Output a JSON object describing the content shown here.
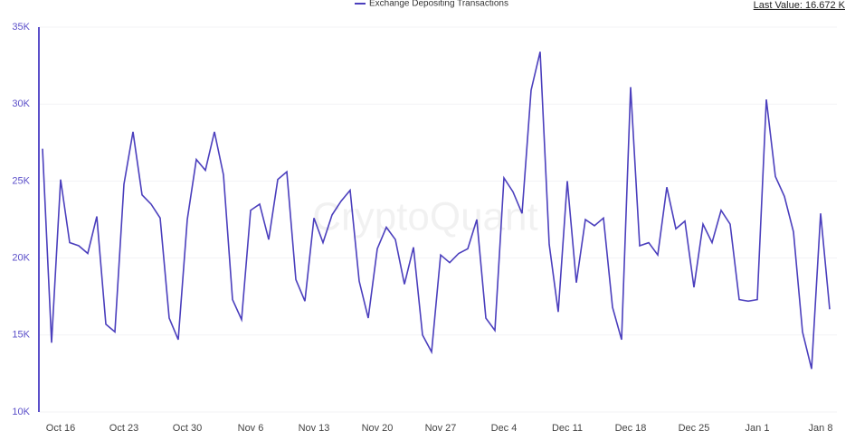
{
  "chart_data": {
    "type": "line",
    "legend_label": "Exchange Depositing Transactions",
    "last_value_text": "Last Value: 16.672 K",
    "watermark": "CryptoQuant",
    "categories": [
      null,
      null,
      "Oct 16",
      null,
      null,
      null,
      null,
      null,
      null,
      "Oct 23",
      null,
      null,
      null,
      null,
      null,
      null,
      "Oct 30",
      null,
      null,
      null,
      null,
      null,
      null,
      "Nov 6",
      null,
      null,
      null,
      null,
      null,
      null,
      "Nov 13",
      null,
      null,
      null,
      null,
      null,
      null,
      "Nov 20",
      null,
      null,
      null,
      null,
      null,
      null,
      "Nov 27",
      null,
      null,
      null,
      null,
      null,
      null,
      "Dec 4",
      null,
      null,
      null,
      null,
      null,
      null,
      "Dec 11",
      null,
      null,
      null,
      null,
      null,
      null,
      "Dec 18",
      null,
      null,
      null,
      null,
      null,
      null,
      "Dec 25",
      null,
      null,
      null,
      null,
      null,
      null,
      "Jan 1",
      null,
      null,
      null,
      null,
      null,
      null,
      "Jan 8",
      null
    ],
    "series": [
      {
        "name": "Exchange Depositing Transactions",
        "color": "#4b3fbd",
        "values": [
          27.1,
          14.5,
          25.1,
          21.0,
          20.8,
          20.3,
          22.7,
          15.7,
          15.2,
          24.8,
          28.2,
          24.1,
          23.5,
          22.6,
          16.1,
          14.7,
          22.5,
          26.4,
          25.7,
          28.2,
          25.4,
          17.3,
          16.0,
          23.1,
          23.5,
          21.2,
          25.1,
          25.6,
          18.6,
          17.2,
          22.6,
          21.0,
          22.8,
          23.7,
          24.4,
          18.5,
          16.1,
          20.6,
          22.0,
          21.2,
          18.3,
          20.7,
          15.0,
          13.9,
          20.2,
          19.7,
          20.3,
          20.6,
          22.5,
          16.1,
          15.3,
          25.2,
          24.3,
          22.9,
          30.9,
          33.4,
          20.9,
          16.5,
          25.0,
          18.4,
          22.5,
          22.1,
          22.6,
          16.8,
          14.7,
          31.1,
          20.8,
          21.0,
          20.2,
          24.6,
          21.9,
          22.4,
          18.1,
          22.2,
          21.0,
          23.1,
          22.2,
          17.3,
          17.2,
          17.3,
          30.3,
          25.3,
          24.0,
          21.7,
          15.2,
          12.8,
          22.9,
          16.672
        ]
      }
    ],
    "ylim": [
      10,
      35
    ],
    "yticks": [
      {
        "value": 10,
        "label": "10K"
      },
      {
        "value": 15,
        "label": "15K"
      },
      {
        "value": 20,
        "label": "20K"
      },
      {
        "value": 25,
        "label": "25K"
      },
      {
        "value": 30,
        "label": "30K"
      },
      {
        "value": 35,
        "label": "35K"
      }
    ],
    "grid": true
  }
}
